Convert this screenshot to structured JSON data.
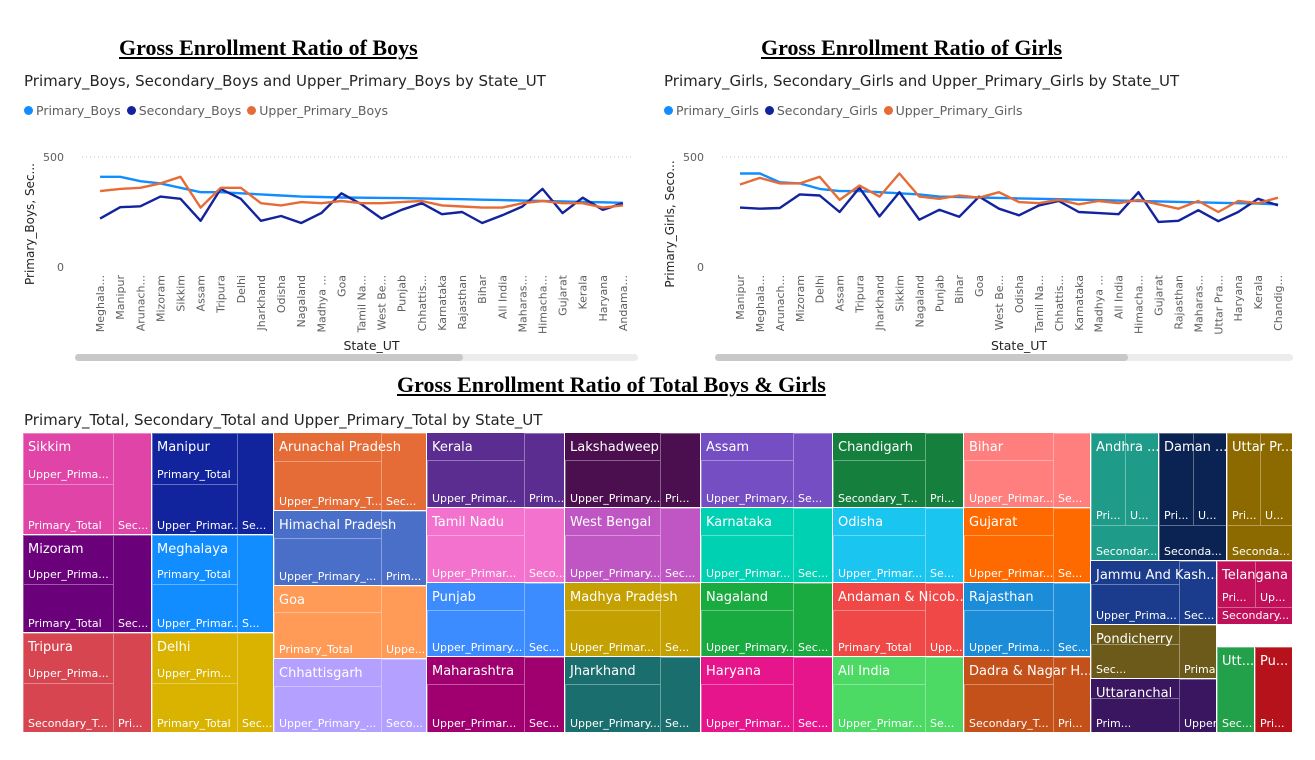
{
  "boys": {
    "section_title": "Gross Enrollment Ratio of Boys",
    "chart_title": "Primary_Boys, Secondary_Boys and Upper_Primary_Boys by State_UT"
  },
  "girls": {
    "section_title": "Gross Enrollment Ratio of Girls",
    "chart_title": "Primary_Girls, Secondary_Girls and Upper_Primary_Girls by State_UT"
  },
  "total": {
    "section_title": "Gross Enrollment Ratio of Total Boys & Girls",
    "chart_title": "Primary_Total, Secondary_Total and Upper_Primary_Total by State_UT"
  },
  "colors": {
    "primary": "#118DFF",
    "secondary": "#12239E",
    "upper": "#E66C37"
  },
  "chart_data": [
    {
      "type": "line",
      "title": "Primary_Boys, Secondary_Boys and Upper_Primary_Boys by State_UT",
      "xlabel": "State_UT",
      "ylabel": "Primary_Boys, Sec...",
      "yticks": [
        0,
        500
      ],
      "ylim": [
        0,
        500
      ],
      "grid": true,
      "legend_position": "top-left",
      "categories": [
        "Meghala...",
        "Manipur",
        "Arunach...",
        "Mizoram",
        "Sikkim",
        "Assam",
        "Tripura",
        "Delhi",
        "Jharkhand",
        "Odisha",
        "Nagaland",
        "Madhya ...",
        "Goa",
        "Tamil Na...",
        "West Be...",
        "Punjab",
        "Chhattis...",
        "Karnataka",
        "Rajasthan",
        "Bihar",
        "All India",
        "Maharas...",
        "Himacha...",
        "Gujarat",
        "Kerala",
        "Haryana",
        "Andama..."
      ],
      "series": [
        {
          "name": "Primary_Boys",
          "values": [
            410,
            410,
            390,
            380,
            360,
            340,
            340,
            335,
            330,
            325,
            320,
            318,
            316,
            315,
            314,
            313,
            312,
            310,
            308,
            306,
            304,
            302,
            300,
            298,
            296,
            294,
            292
          ]
        },
        {
          "name": "Secondary_Boys",
          "values": [
            220,
            272,
            276,
            320,
            310,
            210,
            355,
            310,
            210,
            232,
            200,
            245,
            335,
            285,
            220,
            260,
            290,
            240,
            250,
            200,
            235,
            275,
            355,
            245,
            315,
            260,
            290
          ]
        },
        {
          "name": "Upper_Primary_Boys",
          "values": [
            345,
            355,
            360,
            380,
            410,
            270,
            360,
            360,
            290,
            280,
            295,
            290,
            300,
            290,
            290,
            295,
            300,
            280,
            275,
            270,
            270,
            290,
            300,
            290,
            290,
            270,
            280
          ]
        }
      ]
    },
    {
      "type": "line",
      "title": "Primary_Girls, Secondary_Girls and Upper_Primary_Girls by State_UT",
      "xlabel": "State_UT",
      "ylabel": "Primary_Girls, Seco...",
      "yticks": [
        0,
        500
      ],
      "ylim": [
        0,
        500
      ],
      "grid": true,
      "legend_position": "top-left",
      "categories": [
        "Manipur",
        "Meghala...",
        "Arunach...",
        "Mizoram",
        "Delhi",
        "Assam",
        "Tripura",
        "Jharkhand",
        "Sikkim",
        "Nagaland",
        "Punjab",
        "Bihar",
        "Goa",
        "West Be...",
        "Odisha",
        "Tamil Na...",
        "Chhattis...",
        "Karnataka",
        "Madhya ...",
        "All India",
        "Himacha...",
        "Gujarat",
        "Rajasthan",
        "Maharas...",
        "Uttar Pra...",
        "Haryana",
        "Kerala",
        "Chandig..."
      ],
      "series": [
        {
          "name": "Primary_Girls",
          "values": [
            425,
            425,
            385,
            380,
            355,
            345,
            345,
            340,
            335,
            330,
            320,
            318,
            316,
            314,
            312,
            310,
            308,
            306,
            304,
            302,
            300,
            298,
            296,
            294,
            292,
            290,
            288,
            285
          ]
        },
        {
          "name": "Secondary_Girls",
          "values": [
            270,
            265,
            268,
            330,
            325,
            250,
            360,
            230,
            340,
            215,
            260,
            228,
            320,
            265,
            235,
            280,
            300,
            250,
            245,
            240,
            340,
            205,
            210,
            258,
            208,
            250,
            310,
            280
          ]
        },
        {
          "name": "Upper_Primary_Girls",
          "values": [
            375,
            405,
            380,
            380,
            410,
            305,
            370,
            320,
            425,
            320,
            310,
            325,
            315,
            340,
            295,
            290,
            305,
            285,
            300,
            290,
            305,
            285,
            265,
            300,
            250,
            300,
            290,
            315
          ]
        }
      ]
    },
    {
      "type": "treemap",
      "title": "Primary_Total, Secondary_Total and Upper_Primary_Total by State_UT",
      "nodes": [
        {
          "state": "Sikkim",
          "color": "#E044A7",
          "subs": [
            "Upper_Prima...",
            "Primary_Total",
            "Sec..."
          ]
        },
        {
          "state": "Mizoram",
          "color": "#6B007B",
          "subs": [
            "Upper_Prima...",
            "Primary_Total",
            "Sec..."
          ]
        },
        {
          "state": "Tripura",
          "color": "#D64550",
          "subs": [
            "Upper_Prima...",
            "Secondary_T...",
            "Pri..."
          ]
        },
        {
          "state": "Manipur",
          "color": "#12239E",
          "subs": [
            "Primary_Total",
            "Upper_Primar...",
            "Se..."
          ]
        },
        {
          "state": "Meghalaya",
          "color": "#118DFF",
          "subs": [
            "Primary_Total",
            "Upper_Primar...",
            "S..."
          ]
        },
        {
          "state": "Delhi",
          "color": "#D9B300",
          "subs": [
            "Upper_Prim...",
            "Primary_Total",
            "Sec..."
          ]
        },
        {
          "state": "Arunachal Pradesh",
          "color": "#E66C37",
          "subs": [
            "Upper_Primary_T...",
            "Sec..."
          ]
        },
        {
          "state": "Himachal Pradesh",
          "color": "#4A6FC8",
          "subs": [
            "Upper_Primary_...",
            "Prim..."
          ]
        },
        {
          "state": "Goa",
          "color": "#FF9A57",
          "subs": [
            "Primary_Total",
            "Uppe..."
          ]
        },
        {
          "state": "Chhattisgarh",
          "color": "#B3A0FF",
          "subs": [
            "Upper_Primary_...",
            "Seco..."
          ]
        },
        {
          "state": "Kerala",
          "color": "#5C2D91",
          "subs": [
            "Upper_Primar...",
            "Prim..."
          ]
        },
        {
          "state": "Tamil Nadu",
          "color": "#F272CE",
          "subs": [
            "Upper_Primar...",
            "Seco..."
          ]
        },
        {
          "state": "Punjab",
          "color": "#3C8CFF",
          "subs": [
            "Upper_Primary...",
            "Sec..."
          ]
        },
        {
          "state": "Maharashtra",
          "color": "#A0006F",
          "subs": [
            "Upper_Primar...",
            "Sec..."
          ]
        },
        {
          "state": "Lakshadweep",
          "color": "#4B0F4F",
          "subs": [
            "Upper_Primary...",
            "Pri..."
          ]
        },
        {
          "state": "West Bengal",
          "color": "#C056C4",
          "subs": [
            "Upper_Primary...",
            "Sec..."
          ]
        },
        {
          "state": "Madhya Pradesh",
          "color": "#C4A000",
          "subs": [
            "Upper_Primar...",
            "Se..."
          ]
        },
        {
          "state": "Jharkhand",
          "color": "#1B6E6E",
          "subs": [
            "Upper_Primary...",
            "Se..."
          ]
        },
        {
          "state": "Assam",
          "color": "#744EC2",
          "subs": [
            "Upper_Primary...",
            "Se..."
          ]
        },
        {
          "state": "Karnataka",
          "color": "#00D1B2",
          "subs": [
            "Upper_Primar...",
            "Sec..."
          ]
        },
        {
          "state": "Nagaland",
          "color": "#1AAB40",
          "subs": [
            "Upper_Primary...",
            "Sec..."
          ]
        },
        {
          "state": "Haryana",
          "color": "#E6158C",
          "subs": [
            "Upper_Primar...",
            "Sec..."
          ]
        },
        {
          "state": "Chandigarh",
          "color": "#15803D",
          "subs": [
            "Secondary_T...",
            "Pri..."
          ]
        },
        {
          "state": "Odisha",
          "color": "#1AC6F0",
          "subs": [
            "Upper_Primar...",
            "Se..."
          ]
        },
        {
          "state": "Andaman & Nicob...",
          "color": "#F04747",
          "subs": [
            "Primary_Total",
            "Upp..."
          ]
        },
        {
          "state": "All India",
          "color": "#4CD964",
          "subs": [
            "Upper_Primar...",
            "Se..."
          ]
        },
        {
          "state": "Bihar",
          "color": "#FF7F7F",
          "subs": [
            "Upper_Primar...",
            "Se..."
          ]
        },
        {
          "state": "Gujarat",
          "color": "#FF6A00",
          "subs": [
            "Upper_Primar...",
            "Se..."
          ]
        },
        {
          "state": "Rajasthan",
          "color": "#1A8CD8",
          "subs": [
            "Upper_Prima...",
            "Sec..."
          ]
        },
        {
          "state": "Dadra & Nagar H...",
          "color": "#C4501A",
          "subs": [
            "Secondary_T...",
            "Pri..."
          ]
        },
        {
          "state": "Andhra ...",
          "color": "#1E9C89",
          "subs": [
            "Pri...",
            "U...",
            "Secondar..."
          ]
        },
        {
          "state": "Daman ...",
          "color": "#0B2352",
          "subs": [
            "Pri...",
            "U...",
            "Seconda..."
          ]
        },
        {
          "state": "Uttar Pr...",
          "color": "#8C6A00",
          "subs": [
            "Pri...",
            "U...",
            "Seconda..."
          ]
        },
        {
          "state": "Jammu And Kash...",
          "color": "#1B3C8C",
          "subs": [
            "Upper_Prima...",
            "Sec..."
          ]
        },
        {
          "state": "Telangana",
          "color": "#C0105A",
          "subs": [
            "Pri...",
            "Up...",
            "Secondary..."
          ]
        },
        {
          "state": "Pondicherry",
          "color": "#6B5A1A",
          "subs": [
            "Sec...",
            "Primary_Total"
          ]
        },
        {
          "state": "Uttaranchal",
          "color": "#3A1560",
          "subs": [
            "Prim...",
            "Upper_Pri..."
          ]
        },
        {
          "state": "Utt...",
          "color": "#23A04A",
          "subs": [
            "Sec..."
          ]
        },
        {
          "state": "Pu...",
          "color": "#B5121B",
          "subs": [
            "Pri..."
          ]
        }
      ]
    }
  ]
}
